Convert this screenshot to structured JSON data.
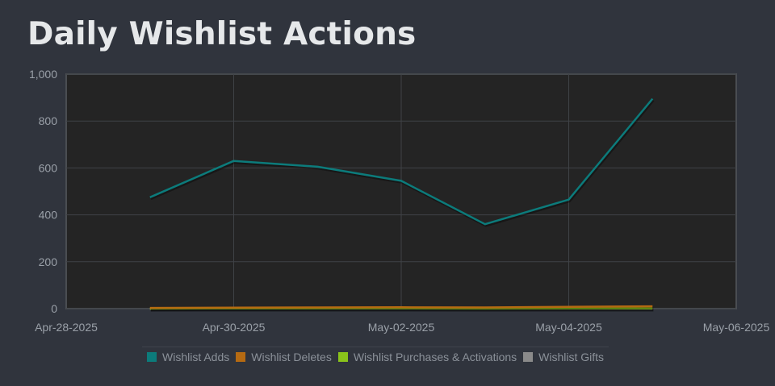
{
  "title": "Daily Wishlist Actions",
  "chart_data": {
    "type": "line",
    "title": "Daily Wishlist Actions",
    "xlabel": "",
    "ylabel": "",
    "x": [
      "Apr-29-2025",
      "Apr-30-2025",
      "May-01-2025",
      "May-02-2025",
      "May-03-2025",
      "May-04-2025",
      "May-05-2025"
    ],
    "x_ticks": [
      "Apr-28-2025",
      "Apr-30-2025",
      "May-02-2025",
      "May-04-2025",
      "May-06-2025"
    ],
    "x_range": [
      "Apr-28-2025",
      "May-06-2025"
    ],
    "y_ticks": [
      "1,000",
      "800",
      "600",
      "400",
      "200",
      "0"
    ],
    "ylim": [
      0,
      1000
    ],
    "grid": true,
    "legend_position": "bottom",
    "series": [
      {
        "name": "Wishlist Adds",
        "color": "#0c7b7b",
        "values": [
          475,
          630,
          605,
          545,
          360,
          465,
          895
        ]
      },
      {
        "name": "Wishlist Deletes",
        "color": "#b56a12",
        "values": [
          3,
          4,
          5,
          6,
          5,
          8,
          10
        ]
      },
      {
        "name": "Wishlist Purchases & Activations",
        "color": "#8ac31b",
        "values": [
          0,
          1,
          1,
          1,
          0,
          1,
          1
        ]
      },
      {
        "name": "Wishlist Gifts",
        "color": "#8a8a8a",
        "values": [
          0,
          0,
          0,
          0,
          0,
          0,
          0
        ]
      }
    ]
  }
}
